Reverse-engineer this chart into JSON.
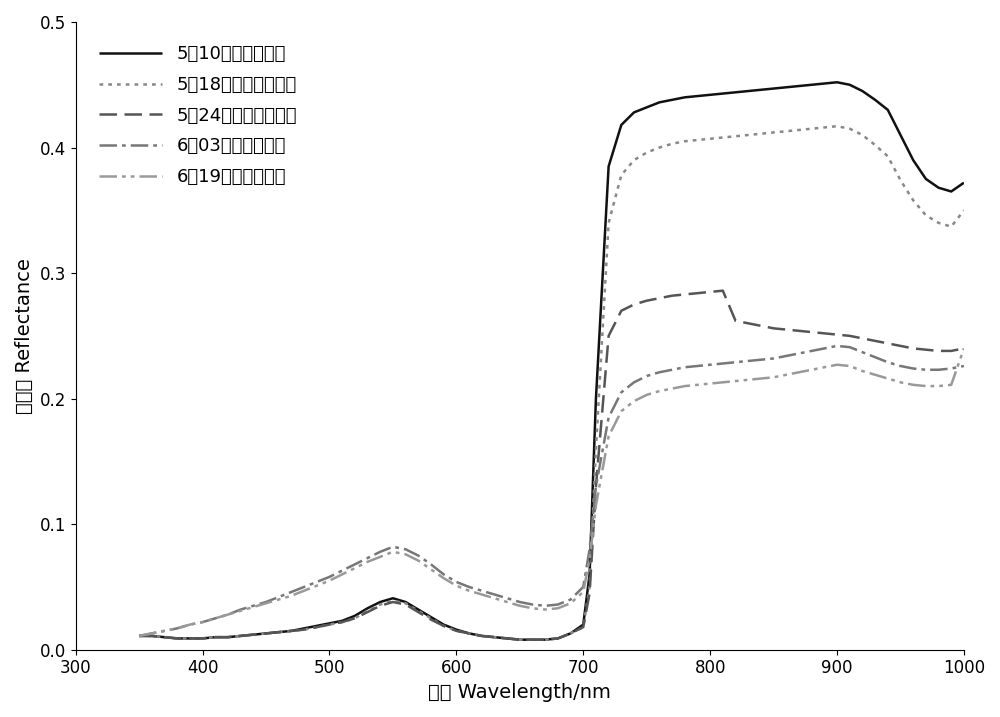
{
  "xlabel": "波长 Wavelength/nm",
  "ylabel": "反射率 Reflectance",
  "xlim": [
    300,
    1000
  ],
  "ylim": [
    0,
    0.5
  ],
  "xticks": [
    300,
    400,
    500,
    600,
    700,
    800,
    900,
    1000
  ],
  "yticks": [
    0,
    0.1,
    0.2,
    0.3,
    0.4,
    0.5
  ],
  "series": [
    {
      "label": "5月10日（开花期）",
      "color": "#111111",
      "linestyle": "solid",
      "linewidth": 1.8,
      "x": [
        350,
        360,
        370,
        380,
        390,
        400,
        410,
        420,
        430,
        440,
        450,
        460,
        470,
        480,
        490,
        500,
        510,
        520,
        530,
        540,
        550,
        560,
        570,
        580,
        590,
        600,
        610,
        620,
        630,
        640,
        650,
        660,
        670,
        680,
        690,
        700,
        705,
        710,
        720,
        730,
        740,
        750,
        760,
        770,
        780,
        790,
        800,
        810,
        820,
        830,
        840,
        850,
        860,
        870,
        880,
        890,
        900,
        910,
        920,
        930,
        940,
        950,
        960,
        970,
        980,
        990,
        1000
      ],
      "y": [
        0.011,
        0.011,
        0.01,
        0.009,
        0.009,
        0.009,
        0.01,
        0.01,
        0.011,
        0.012,
        0.013,
        0.014,
        0.015,
        0.017,
        0.019,
        0.021,
        0.023,
        0.027,
        0.033,
        0.038,
        0.041,
        0.038,
        0.032,
        0.026,
        0.02,
        0.016,
        0.013,
        0.011,
        0.01,
        0.009,
        0.008,
        0.008,
        0.008,
        0.009,
        0.013,
        0.02,
        0.06,
        0.2,
        0.385,
        0.418,
        0.428,
        0.432,
        0.436,
        0.438,
        0.44,
        0.441,
        0.442,
        0.443,
        0.444,
        0.445,
        0.446,
        0.447,
        0.448,
        0.449,
        0.45,
        0.451,
        0.452,
        0.45,
        0.445,
        0.438,
        0.43,
        0.41,
        0.39,
        0.375,
        0.368,
        0.365,
        0.372
      ]
    },
    {
      "label": "5月18日（灌浆前期）",
      "color": "#888888",
      "linestyle": "dotted",
      "linewidth": 1.8,
      "x": [
        350,
        360,
        370,
        380,
        390,
        400,
        410,
        420,
        430,
        440,
        450,
        460,
        470,
        480,
        490,
        500,
        510,
        520,
        530,
        540,
        550,
        560,
        570,
        580,
        590,
        600,
        610,
        620,
        630,
        640,
        650,
        660,
        670,
        680,
        690,
        700,
        705,
        710,
        720,
        730,
        740,
        750,
        760,
        770,
        780,
        790,
        800,
        810,
        820,
        830,
        840,
        850,
        860,
        870,
        880,
        890,
        900,
        910,
        920,
        930,
        940,
        950,
        960,
        970,
        980,
        990,
        1000
      ],
      "y": [
        0.011,
        0.011,
        0.01,
        0.009,
        0.009,
        0.009,
        0.01,
        0.01,
        0.011,
        0.012,
        0.013,
        0.014,
        0.015,
        0.016,
        0.018,
        0.02,
        0.022,
        0.025,
        0.031,
        0.036,
        0.039,
        0.037,
        0.031,
        0.025,
        0.019,
        0.015,
        0.013,
        0.011,
        0.01,
        0.009,
        0.008,
        0.008,
        0.008,
        0.009,
        0.013,
        0.018,
        0.05,
        0.16,
        0.34,
        0.378,
        0.39,
        0.396,
        0.4,
        0.403,
        0.405,
        0.406,
        0.407,
        0.408,
        0.409,
        0.41,
        0.411,
        0.412,
        0.413,
        0.414,
        0.415,
        0.416,
        0.417,
        0.415,
        0.41,
        0.402,
        0.393,
        0.374,
        0.358,
        0.346,
        0.34,
        0.337,
        0.35
      ]
    },
    {
      "label": "5月24日（灌浆后期）",
      "color": "#555555",
      "linestyle": "dashed",
      "linewidth": 1.8,
      "x": [
        350,
        360,
        370,
        380,
        390,
        400,
        410,
        420,
        430,
        440,
        450,
        460,
        470,
        480,
        490,
        500,
        510,
        520,
        530,
        540,
        550,
        560,
        570,
        580,
        590,
        600,
        610,
        620,
        630,
        640,
        650,
        660,
        670,
        680,
        690,
        700,
        705,
        710,
        720,
        730,
        740,
        750,
        760,
        770,
        780,
        790,
        800,
        810,
        820,
        830,
        840,
        850,
        860,
        870,
        880,
        890,
        900,
        910,
        920,
        930,
        940,
        950,
        960,
        970,
        980,
        990,
        1000
      ],
      "y": [
        0.011,
        0.011,
        0.01,
        0.009,
        0.009,
        0.009,
        0.01,
        0.01,
        0.011,
        0.012,
        0.013,
        0.014,
        0.015,
        0.016,
        0.018,
        0.02,
        0.022,
        0.025,
        0.03,
        0.035,
        0.038,
        0.036,
        0.03,
        0.024,
        0.019,
        0.015,
        0.013,
        0.011,
        0.01,
        0.009,
        0.008,
        0.008,
        0.008,
        0.009,
        0.013,
        0.018,
        0.045,
        0.13,
        0.25,
        0.27,
        0.275,
        0.278,
        0.28,
        0.282,
        0.283,
        0.284,
        0.285,
        0.286,
        0.262,
        0.26,
        0.258,
        0.256,
        0.255,
        0.254,
        0.253,
        0.252,
        0.251,
        0.25,
        0.248,
        0.246,
        0.244,
        0.242,
        0.24,
        0.239,
        0.238,
        0.238,
        0.24
      ]
    },
    {
      "label": "6月03日（乳熟期）",
      "color": "#777777",
      "linestyle": "dashdot",
      "linewidth": 1.8,
      "x": [
        350,
        360,
        370,
        380,
        390,
        400,
        410,
        420,
        430,
        440,
        450,
        460,
        470,
        480,
        490,
        500,
        510,
        520,
        530,
        540,
        550,
        560,
        570,
        580,
        590,
        600,
        610,
        620,
        630,
        640,
        650,
        660,
        670,
        680,
        690,
        700,
        705,
        710,
        720,
        730,
        740,
        750,
        760,
        770,
        780,
        790,
        800,
        810,
        820,
        830,
        840,
        850,
        860,
        870,
        880,
        890,
        900,
        910,
        920,
        930,
        940,
        950,
        960,
        970,
        980,
        990,
        1000
      ],
      "y": [
        0.011,
        0.013,
        0.015,
        0.017,
        0.02,
        0.022,
        0.025,
        0.028,
        0.032,
        0.035,
        0.038,
        0.042,
        0.046,
        0.05,
        0.054,
        0.058,
        0.063,
        0.068,
        0.073,
        0.078,
        0.082,
        0.08,
        0.075,
        0.068,
        0.06,
        0.054,
        0.05,
        0.047,
        0.044,
        0.041,
        0.038,
        0.036,
        0.035,
        0.036,
        0.04,
        0.05,
        0.08,
        0.13,
        0.185,
        0.205,
        0.213,
        0.218,
        0.221,
        0.223,
        0.225,
        0.226,
        0.227,
        0.228,
        0.229,
        0.23,
        0.231,
        0.232,
        0.234,
        0.236,
        0.238,
        0.24,
        0.242,
        0.241,
        0.237,
        0.233,
        0.229,
        0.226,
        0.224,
        0.223,
        0.223,
        0.224,
        0.226
      ]
    },
    {
      "label": "6月19日（成熟期）",
      "color": "#999999",
      "linestyle": "dashdotdotted",
      "linewidth": 1.8,
      "x": [
        350,
        360,
        370,
        380,
        390,
        400,
        410,
        420,
        430,
        440,
        450,
        460,
        470,
        480,
        490,
        500,
        510,
        520,
        530,
        540,
        550,
        560,
        570,
        580,
        590,
        600,
        610,
        620,
        630,
        640,
        650,
        660,
        670,
        680,
        690,
        700,
        705,
        710,
        720,
        730,
        740,
        750,
        760,
        770,
        780,
        790,
        800,
        810,
        820,
        830,
        840,
        850,
        860,
        870,
        880,
        890,
        900,
        910,
        920,
        930,
        940,
        950,
        960,
        970,
        980,
        990,
        1000
      ],
      "y": [
        0.011,
        0.013,
        0.015,
        0.017,
        0.02,
        0.022,
        0.025,
        0.028,
        0.031,
        0.034,
        0.037,
        0.04,
        0.043,
        0.047,
        0.051,
        0.055,
        0.06,
        0.065,
        0.07,
        0.074,
        0.078,
        0.076,
        0.071,
        0.064,
        0.057,
        0.051,
        0.047,
        0.044,
        0.041,
        0.038,
        0.035,
        0.033,
        0.032,
        0.033,
        0.037,
        0.046,
        0.072,
        0.115,
        0.17,
        0.19,
        0.198,
        0.203,
        0.206,
        0.208,
        0.21,
        0.211,
        0.212,
        0.213,
        0.214,
        0.215,
        0.216,
        0.217,
        0.219,
        0.221,
        0.223,
        0.225,
        0.227,
        0.226,
        0.222,
        0.219,
        0.216,
        0.213,
        0.211,
        0.21,
        0.21,
        0.211,
        0.24
      ]
    }
  ],
  "legend_fontsize": 13,
  "label_fontsize": 14,
  "tick_fontsize": 12,
  "background_color": "#ffffff"
}
